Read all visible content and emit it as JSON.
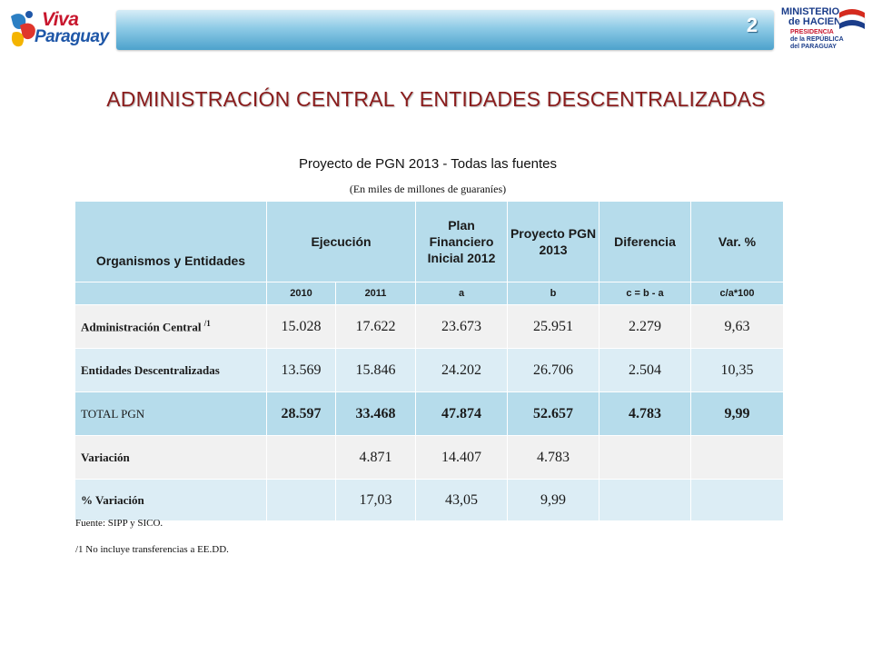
{
  "header": {
    "logo_left_line1": "Viva",
    "logo_left_line2": "Paraguay",
    "page_number": "2",
    "logo_right_line1": "MINISTERIO",
    "logo_right_line2": "de HACIENDA",
    "logo_right_line3": "PRESIDENCIA",
    "logo_right_line4": "de la REPÚBLICA",
    "logo_right_line5": "del PARAGUAY"
  },
  "title": "ADMINISTRACIÓN CENTRAL Y ENTIDADES DESCENTRALIZADAS",
  "subtitle": "Proyecto de PGN 2013 - Todas las fuentes",
  "units": "(En  miles de millones de guaraníes)",
  "table": {
    "headers": {
      "entity": "Organismos y Entidades",
      "ejecucion": "Ejecución",
      "plan": "Plan Financiero Inicial 2012",
      "proyecto": "Proyecto PGN 2013",
      "diferencia": "Diferencia",
      "var": "Var. %"
    },
    "subheaders": [
      "2010",
      "2011",
      "a",
      "b",
      "c = b - a",
      "c/a*100"
    ],
    "rows": [
      {
        "label": "Administración  Central",
        "footnote": "/1",
        "values": [
          "15.028",
          "17.622",
          "23.673",
          "25.951",
          "2.279",
          "9,63"
        ]
      },
      {
        "label": "Entidades Descentralizadas",
        "footnote": "",
        "values": [
          "13.569",
          "15.846",
          "24.202",
          "26.706",
          "2.504",
          "10,35"
        ]
      },
      {
        "label": "TOTAL PGN",
        "footnote": "",
        "values": [
          "28.597",
          "33.468",
          "47.874",
          "52.657",
          "4.783",
          "9,99"
        ]
      },
      {
        "label": "Variación",
        "footnote": "",
        "values": [
          "",
          "4.871",
          "14.407",
          "4.783",
          "",
          ""
        ]
      },
      {
        "label": "% Variación",
        "footnote": "",
        "values": [
          "",
          "17,03",
          "43,05",
          "9,99",
          "",
          ""
        ]
      }
    ]
  },
  "notes": {
    "source": "Fuente: SIPP y SICO.",
    "footnote1": "/1  No incluye transferencias a EE.DD."
  },
  "colors": {
    "header_bar": "#4da2cc",
    "table_header": "#b6dceb",
    "row_light": "#f1f1f1",
    "row_blue": "#dcedf5",
    "title": "#8a1c1c"
  }
}
